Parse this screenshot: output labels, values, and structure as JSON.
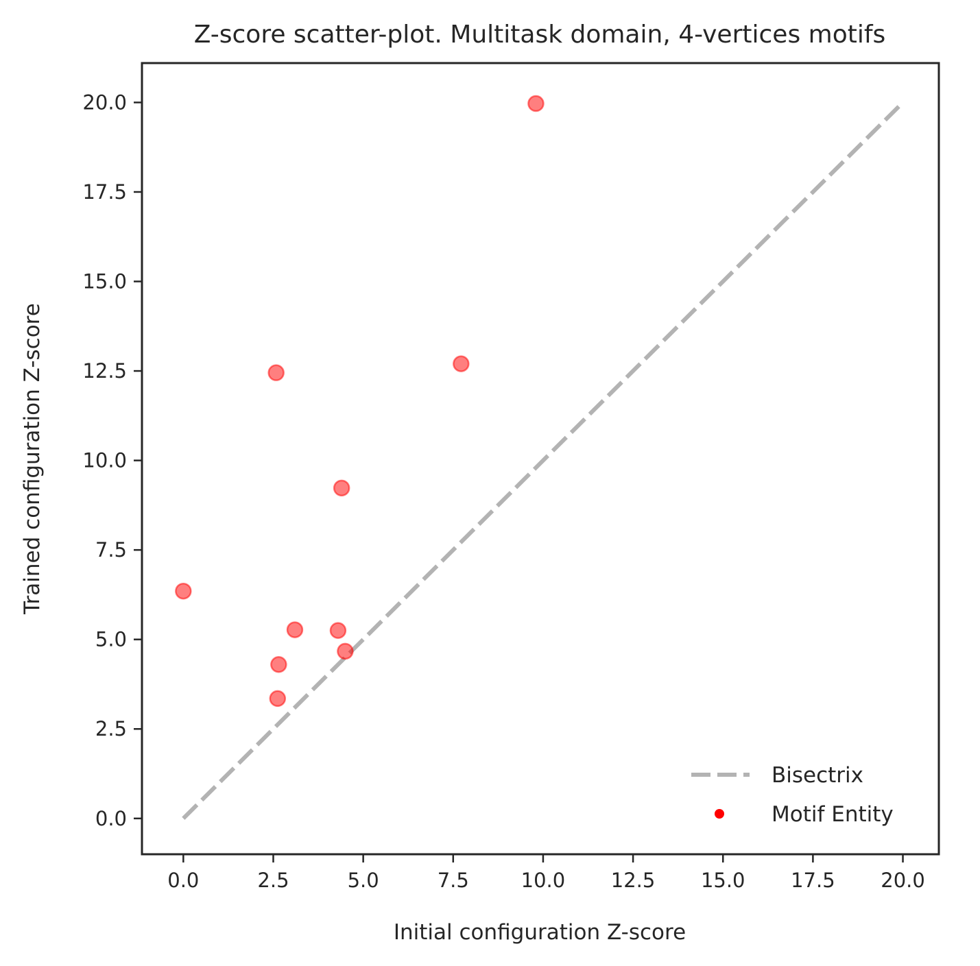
{
  "chart_data": {
    "type": "scatter",
    "title": "Z-score scatter-plot. Multitask domain, 4-vertices motifs",
    "xlabel": "Initial configuration Z-score",
    "ylabel": "Trained configuration Z-score",
    "xlim": [
      -1.15,
      21.0
    ],
    "ylim": [
      -1.0,
      21.1
    ],
    "xticks": [
      0.0,
      2.5,
      5.0,
      7.5,
      10.0,
      12.5,
      15.0,
      17.5,
      20.0
    ],
    "yticks": [
      0.0,
      2.5,
      5.0,
      7.5,
      10.0,
      12.5,
      15.0,
      17.5,
      20.0
    ],
    "xtick_labels": [
      "0.0",
      "2.5",
      "5.0",
      "7.5",
      "10.0",
      "12.5",
      "15.0",
      "17.5",
      "20.0"
    ],
    "ytick_labels": [
      "0.0",
      "2.5",
      "5.0",
      "7.5",
      "10.0",
      "12.5",
      "15.0",
      "17.5",
      "20.0"
    ],
    "grid": false,
    "legend": {
      "placement": "lower-right",
      "entries": [
        "Bisectrix",
        "Motif Entity"
      ]
    },
    "series": [
      {
        "name": "Bisectrix",
        "kind": "dashed-line",
        "color": "#b3b3b3",
        "x": [
          0.0,
          20.0
        ],
        "y": [
          0.0,
          20.0
        ]
      },
      {
        "name": "Motif Entity",
        "kind": "points",
        "color": "#ff0000",
        "x": [
          9.8,
          7.72,
          2.58,
          4.4,
          0.0,
          3.1,
          4.3,
          4.5,
          2.65,
          2.62
        ],
        "y": [
          19.97,
          12.7,
          12.45,
          9.23,
          6.35,
          5.27,
          5.25,
          4.67,
          4.3,
          3.35
        ]
      }
    ]
  }
}
